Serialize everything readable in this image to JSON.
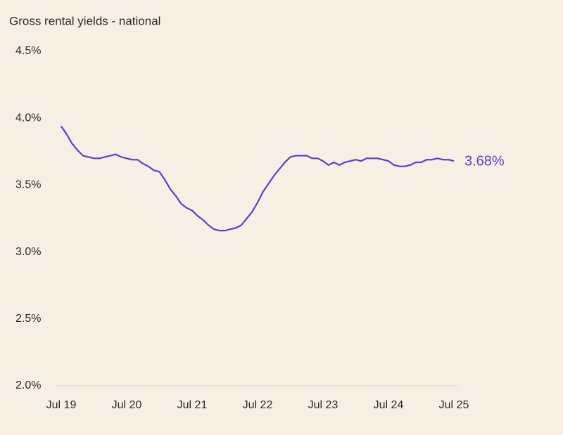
{
  "chart_data": {
    "type": "line",
    "title": "Gross rental yields - national",
    "categories": [
      "Jul 19",
      null,
      null,
      null,
      null,
      null,
      null,
      null,
      null,
      null,
      null,
      null,
      "Jul 20",
      null,
      null,
      null,
      null,
      null,
      null,
      null,
      null,
      null,
      null,
      null,
      "Jul 21",
      null,
      null,
      null,
      null,
      null,
      null,
      null,
      null,
      null,
      null,
      null,
      "Jul 22",
      null,
      null,
      null,
      null,
      null,
      null,
      null,
      null,
      null,
      null,
      null,
      "Jul 23",
      null,
      null,
      null,
      null,
      null,
      null,
      null,
      null,
      null,
      null,
      null,
      "Jul 24",
      null,
      null,
      null,
      null,
      null,
      null,
      null,
      null,
      null,
      null,
      null,
      "Jul 25"
    ],
    "values": [
      3.94,
      3.88,
      3.81,
      3.76,
      3.72,
      3.71,
      3.7,
      3.7,
      3.71,
      3.72,
      3.73,
      3.71,
      3.7,
      3.69,
      3.69,
      3.66,
      3.64,
      3.61,
      3.6,
      3.54,
      3.47,
      3.42,
      3.36,
      3.33,
      3.31,
      3.27,
      3.24,
      3.2,
      3.17,
      3.16,
      3.16,
      3.17,
      3.18,
      3.2,
      3.25,
      3.3,
      3.37,
      3.45,
      3.51,
      3.57,
      3.62,
      3.67,
      3.71,
      3.72,
      3.72,
      3.72,
      3.7,
      3.7,
      3.68,
      3.65,
      3.67,
      3.65,
      3.67,
      3.68,
      3.69,
      3.68,
      3.7,
      3.7,
      3.7,
      3.69,
      3.68,
      3.65,
      3.64,
      3.64,
      3.65,
      3.67,
      3.67,
      3.69,
      3.69,
      3.7,
      3.69,
      3.69,
      3.68
    ],
    "value_labels": [
      null,
      null,
      null,
      null,
      null,
      null,
      null,
      null,
      null,
      null,
      null,
      null,
      null,
      null,
      null,
      null,
      null,
      null,
      null,
      null,
      null,
      null,
      null,
      null,
      null,
      null,
      null,
      null,
      null,
      null,
      null,
      null,
      null,
      null,
      null,
      null,
      null,
      null,
      null,
      null,
      null,
      null,
      null,
      null,
      null,
      null,
      null,
      null,
      null,
      null,
      null,
      null,
      null,
      null,
      null,
      null,
      null,
      null,
      null,
      null,
      null,
      null,
      null,
      null,
      null,
      null,
      null,
      null,
      null,
      null,
      null,
      null,
      "3.68%"
    ],
    "color": "#5a3fd0",
    "ylim": [
      2.0,
      4.5
    ],
    "yticks": [
      {
        "value": 2.0,
        "label": "2.0%"
      },
      {
        "value": 2.5,
        "label": "2.5%"
      },
      {
        "value": 3.0,
        "label": "3.0%"
      },
      {
        "value": 3.5,
        "label": "3.5%"
      },
      {
        "value": 4.0,
        "label": "4.0%"
      },
      {
        "value": 4.5,
        "label": "4.5%"
      }
    ],
    "grid": false
  }
}
